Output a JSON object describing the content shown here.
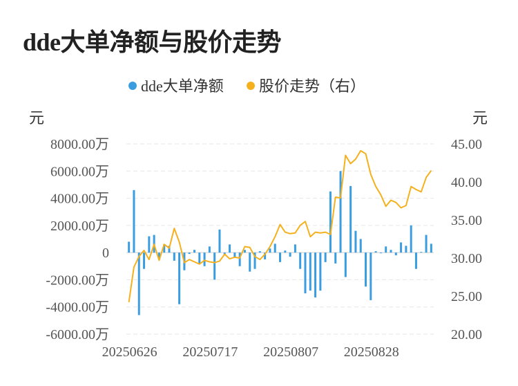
{
  "chart_data": {
    "type": "bar+line",
    "title": "dde大单净额与股价走势",
    "legend": [
      {
        "name": "dde大单净额",
        "color": "#3a9de0"
      },
      {
        "name": "股价走势（右）",
        "color": "#f5b01d"
      }
    ],
    "left_unit": "元",
    "right_unit": "元",
    "left_axis": {
      "ylim": [
        -6000,
        8000
      ],
      "ticks": [
        8000,
        6000,
        4000,
        2000,
        0,
        -2000,
        -4000,
        -6000
      ],
      "tick_labels": [
        "8000.00万",
        "6000.00万",
        "4000.00万",
        "2000.00万",
        "0",
        "-2000.00万",
        "-4000.00万",
        "-6000.00万"
      ]
    },
    "right_axis": {
      "ylim": [
        20,
        45
      ],
      "ticks": [
        45,
        40,
        35,
        30,
        25,
        20
      ],
      "tick_labels": [
        "45.00",
        "40.00",
        "35.00",
        "30.00",
        "25.00",
        "20.00"
      ]
    },
    "x_tick_labels": [
      {
        "index": 0,
        "label": "20250626"
      },
      {
        "index": 16,
        "label": "20250717"
      },
      {
        "index": 32,
        "label": "20250807"
      },
      {
        "index": 48,
        "label": "20250828"
      }
    ],
    "grid": true,
    "series": [
      {
        "name": "dde大单净额",
        "type": "bar",
        "axis": "left",
        "values": [
          800,
          4600,
          -4600,
          -1200,
          1200,
          1300,
          -500,
          600,
          500,
          -600,
          -3800,
          -1300,
          -100,
          200,
          -800,
          -1000,
          450,
          -2000,
          1700,
          -200,
          600,
          -400,
          -1000,
          200,
          -1400,
          -1200,
          100,
          -500,
          300,
          650,
          -700,
          150,
          -300,
          600,
          -1200,
          -3000,
          -2800,
          -3300,
          -2800,
          -700,
          4500,
          -800,
          6000,
          -1800,
          4900,
          1600,
          1000,
          -2500,
          -3500,
          100,
          -50,
          450,
          200,
          -200,
          750,
          500,
          2000,
          -1200,
          50,
          1300,
          650
        ]
      },
      {
        "name": "股价走势（右）",
        "type": "line",
        "axis": "right",
        "values": [
          24.2,
          28.8,
          30.2,
          31.0,
          29.8,
          31.8,
          29.7,
          31.8,
          31.3,
          33.9,
          32.1,
          29.4,
          29.8,
          29.5,
          29.2,
          29.7,
          29.5,
          29.4,
          29.6,
          30.5,
          29.9,
          30.1,
          30.0,
          31.5,
          31.4,
          30.2,
          29.8,
          30.5,
          31.5,
          32.8,
          34.4,
          33.4,
          33.2,
          33.3,
          34.3,
          34.8,
          32.8,
          33.4,
          33.3,
          33.4,
          33.1,
          38.0,
          37.9,
          43.5,
          42.4,
          43.0,
          44.1,
          43.7,
          41.0,
          39.4,
          38.3,
          36.8,
          37.6,
          37.3,
          36.6,
          36.9,
          39.4,
          39.0,
          38.7,
          40.6,
          41.5
        ]
      }
    ]
  }
}
